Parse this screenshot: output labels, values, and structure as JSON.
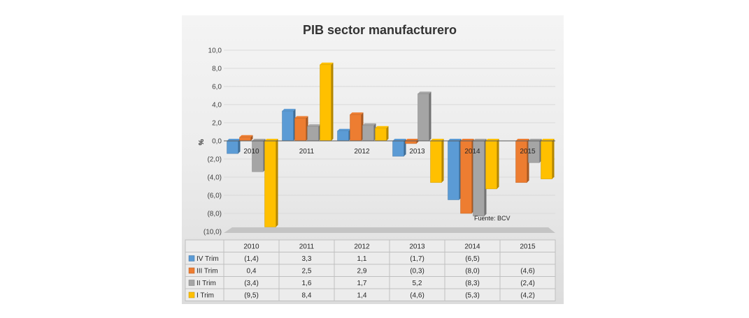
{
  "chart_data": {
    "type": "bar",
    "title": "PIB sector manufacturero",
    "ylabel": "%",
    "xlabel": "",
    "ylim": [
      -10,
      10
    ],
    "y_ticks": [
      "10,0",
      "8,0",
      "6,0",
      "4,0",
      "2,0",
      "0,0",
      "(2,0)",
      "(4,0)",
      "(6,0)",
      "(8,0)",
      "(10,0)"
    ],
    "grid": true,
    "legend": "data-table-left",
    "categories": [
      "2010",
      "2011",
      "2012",
      "2013",
      "2014",
      "2015"
    ],
    "series": [
      {
        "name": "IV Trim",
        "color": "#5b9bd5",
        "values": [
          -1.4,
          3.3,
          1.1,
          -1.7,
          -6.5,
          null
        ],
        "labels": [
          "(1,4)",
          "3,3",
          "1,1",
          "(1,7)",
          "(6,5)",
          ""
        ]
      },
      {
        "name": "III Trim",
        "color": "#ed7d31",
        "values": [
          0.4,
          2.5,
          2.9,
          -0.3,
          -8.0,
          -4.6
        ],
        "labels": [
          "0,4",
          "2,5",
          "2,9",
          "(0,3)",
          "(8,0)",
          "(4,6)"
        ]
      },
      {
        "name": "II Trim",
        "color": "#a5a5a5",
        "values": [
          -3.4,
          1.6,
          1.7,
          5.2,
          -8.3,
          -2.4
        ],
        "labels": [
          "(3,4)",
          "1,6",
          "1,7",
          "5,2",
          "(8,3)",
          "(2,4)"
        ]
      },
      {
        "name": "I Trim",
        "color": "#ffc000",
        "values": [
          -9.5,
          8.4,
          1.4,
          -4.6,
          -5.3,
          -4.2
        ],
        "labels": [
          "(9,5)",
          "8,4",
          "1,4",
          "(4,6)",
          "(5,3)",
          "(4,2)"
        ]
      }
    ],
    "annotations": [
      "Fuente: BCV"
    ]
  }
}
